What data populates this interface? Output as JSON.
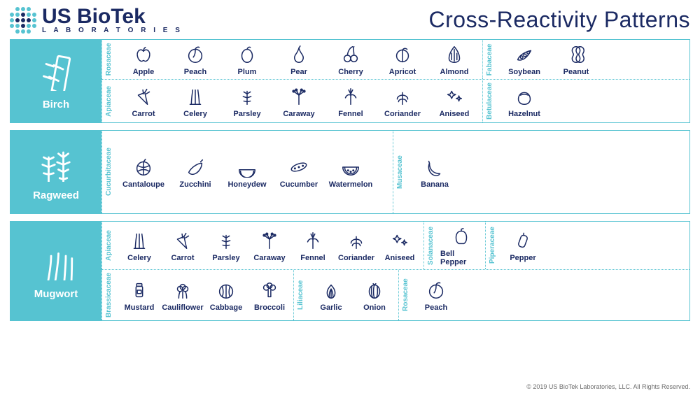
{
  "header": {
    "brand_top": "US BioTek",
    "brand_sub": "L A B O R A T O R I E S",
    "title": "Cross-Reactivity Patterns"
  },
  "colors": {
    "accent": "#56c3d1",
    "ink": "#1b2a63",
    "bg": "#ffffff",
    "footer_text": "#6b6b6b"
  },
  "sections": [
    {
      "allergen": "Birch",
      "rows": [
        {
          "groups": [
            {
              "family": "Rosaceae",
              "items": [
                "Apple",
                "Peach",
                "Plum",
                "Pear",
                "Cherry",
                "Apricot",
                "Almond"
              ]
            },
            {
              "family": "Fabaceae",
              "items": [
                "Soybean",
                "Peanut"
              ]
            }
          ]
        },
        {
          "groups": [
            {
              "family": "Apiaceae",
              "items": [
                "Carrot",
                "Celery",
                "Parsley",
                "Caraway",
                "Fennel",
                "Coriander",
                "Aniseed"
              ]
            },
            {
              "family": "Betulaceae",
              "items": [
                "Hazelnut"
              ]
            }
          ]
        }
      ]
    },
    {
      "allergen": "Ragweed",
      "rows": [
        {
          "groups": [
            {
              "family": "Cucurbitaceae",
              "items": [
                "Cantaloupe",
                "Zucchini",
                "Honeydew",
                "Cucumber",
                "Watermelon"
              ]
            },
            {
              "family": "Musaceae",
              "items": [
                "Banana"
              ]
            }
          ]
        }
      ]
    },
    {
      "allergen": "Mugwort",
      "rows": [
        {
          "groups": [
            {
              "family": "Apiaceae",
              "items": [
                "Celery",
                "Carrot",
                "Parsley",
                "Caraway",
                "Fennel",
                "Coriander",
                "Aniseed"
              ]
            },
            {
              "family": "Solanaceae",
              "items": [
                "Bell Pepper"
              ]
            },
            {
              "family": "Piperaceae",
              "items": [
                "Pepper"
              ]
            }
          ]
        },
        {
          "groups": [
            {
              "family": "Brassicaceae",
              "items": [
                "Mustard",
                "Cauliflower",
                "Cabbage",
                "Broccoli"
              ]
            },
            {
              "family": "Liliaceae",
              "items": [
                "Garlic",
                "Onion"
              ]
            },
            {
              "family": "Rosaceae",
              "items": [
                "Peach"
              ]
            }
          ]
        }
      ]
    }
  ],
  "footer": "© 2019 US BioTek Laboratories, LLC. All Rights Reserved.",
  "glyphs": {
    "Apple": "apple",
    "Peach": "peach",
    "Plum": "plum",
    "Pear": "pear",
    "Cherry": "cherry",
    "Apricot": "apricot",
    "Almond": "almond",
    "Soybean": "peas",
    "Peanut": "peanut",
    "Carrot": "carrot",
    "Celery": "celery",
    "Parsley": "herb",
    "Caraway": "umbel",
    "Fennel": "fennel",
    "Coriander": "leafy",
    "Aniseed": "stars",
    "Hazelnut": "nut",
    "Cantaloupe": "melon",
    "Zucchini": "zucchini",
    "Honeydew": "wedge",
    "Cucumber": "cucumber",
    "Watermelon": "watermelon",
    "Banana": "banana",
    "Bell Pepper": "bell",
    "Pepper": "shaker",
    "Mustard": "jar",
    "Cauliflower": "cauli",
    "Cabbage": "cabbage",
    "Broccoli": "broccoli",
    "Garlic": "garlic",
    "Onion": "onion",
    "Birch": "birch",
    "Ragweed": "ragweed",
    "Mugwort": "mugwort"
  }
}
